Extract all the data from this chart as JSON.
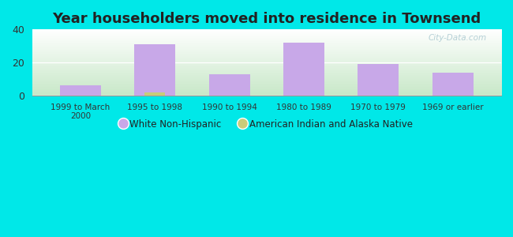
{
  "title": "Year householders moved into residence in Townsend",
  "categories": [
    "1999 to March\n2000",
    "1995 to 1998",
    "1990 to 1994",
    "1980 to 1989",
    "1970 to 1979",
    "1969 or earlier"
  ],
  "white_non_hispanic": [
    6,
    31,
    13,
    32,
    19,
    14
  ],
  "american_indian": [
    0,
    2,
    0,
    0,
    0,
    0
  ],
  "white_color": "#c8a8e8",
  "indian_color": "#c8cc7a",
  "background_outer": "#00e8e8",
  "ylim": [
    0,
    40
  ],
  "yticks": [
    0,
    20,
    40
  ],
  "bar_width": 0.55,
  "legend_labels": [
    "White Non-Hispanic",
    "American Indian and Alaska Native"
  ],
  "title_fontsize": 13,
  "watermark": "City-Data.com"
}
